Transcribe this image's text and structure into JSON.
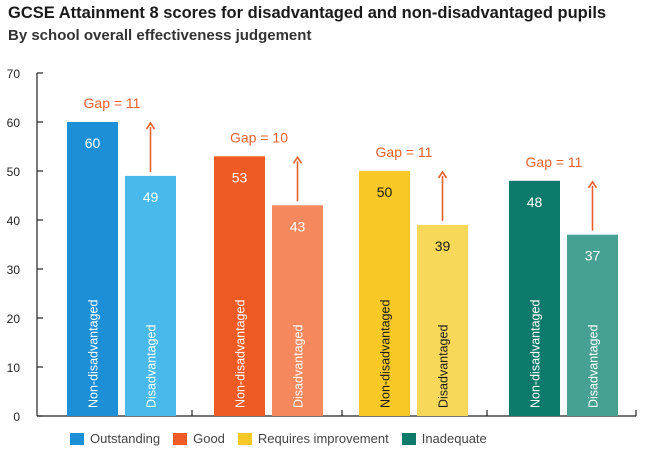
{
  "chart_data": {
    "type": "bar",
    "title": "GCSE Attainment 8 scores for disadvantaged and non-disadvantaged pupils",
    "subtitle": "By school overall effectiveness judgement",
    "ylim": [
      0,
      70
    ],
    "yticks": [
      0,
      10,
      20,
      30,
      40,
      50,
      60,
      70
    ],
    "groups": [
      {
        "name": "Outstanding",
        "color_dark": "#1c8fd6",
        "color_light": "#48b9ea",
        "label_color_light": "#ffffff",
        "gap_label": "Gap = 11",
        "bars": [
          {
            "label": "Non-disadvantaged",
            "value": 60
          },
          {
            "label": "Disadvantaged",
            "value": 49
          }
        ]
      },
      {
        "name": "Good",
        "color_dark": "#f05a24",
        "color_light": "#f5885d",
        "label_color_light": "#ffffff",
        "gap_label": "Gap = 10",
        "bars": [
          {
            "label": "Non-disadvantaged",
            "value": 53
          },
          {
            "label": "Disadvantaged",
            "value": 43
          }
        ]
      },
      {
        "name": "Requires improvement",
        "color_dark": "#f8c824",
        "color_light": "#f7d858",
        "label_color_light": "#1a1a1a",
        "gap_label": "Gap = 11",
        "bars": [
          {
            "label": "Non-disadvantaged",
            "value": 50
          },
          {
            "label": "Disadvantaged",
            "value": 39
          }
        ]
      },
      {
        "name": "Inadequate",
        "color_dark": "#0d7a6b",
        "color_light": "#47a193",
        "label_color_light": "#ffffff",
        "gap_label": "Gap = 11",
        "bars": [
          {
            "label": "Non-disadvantaged",
            "value": 48
          },
          {
            "label": "Disadvantaged",
            "value": 37
          }
        ]
      }
    ],
    "gap_arrow_color": "#e8602c",
    "legend_position": "bottom"
  }
}
